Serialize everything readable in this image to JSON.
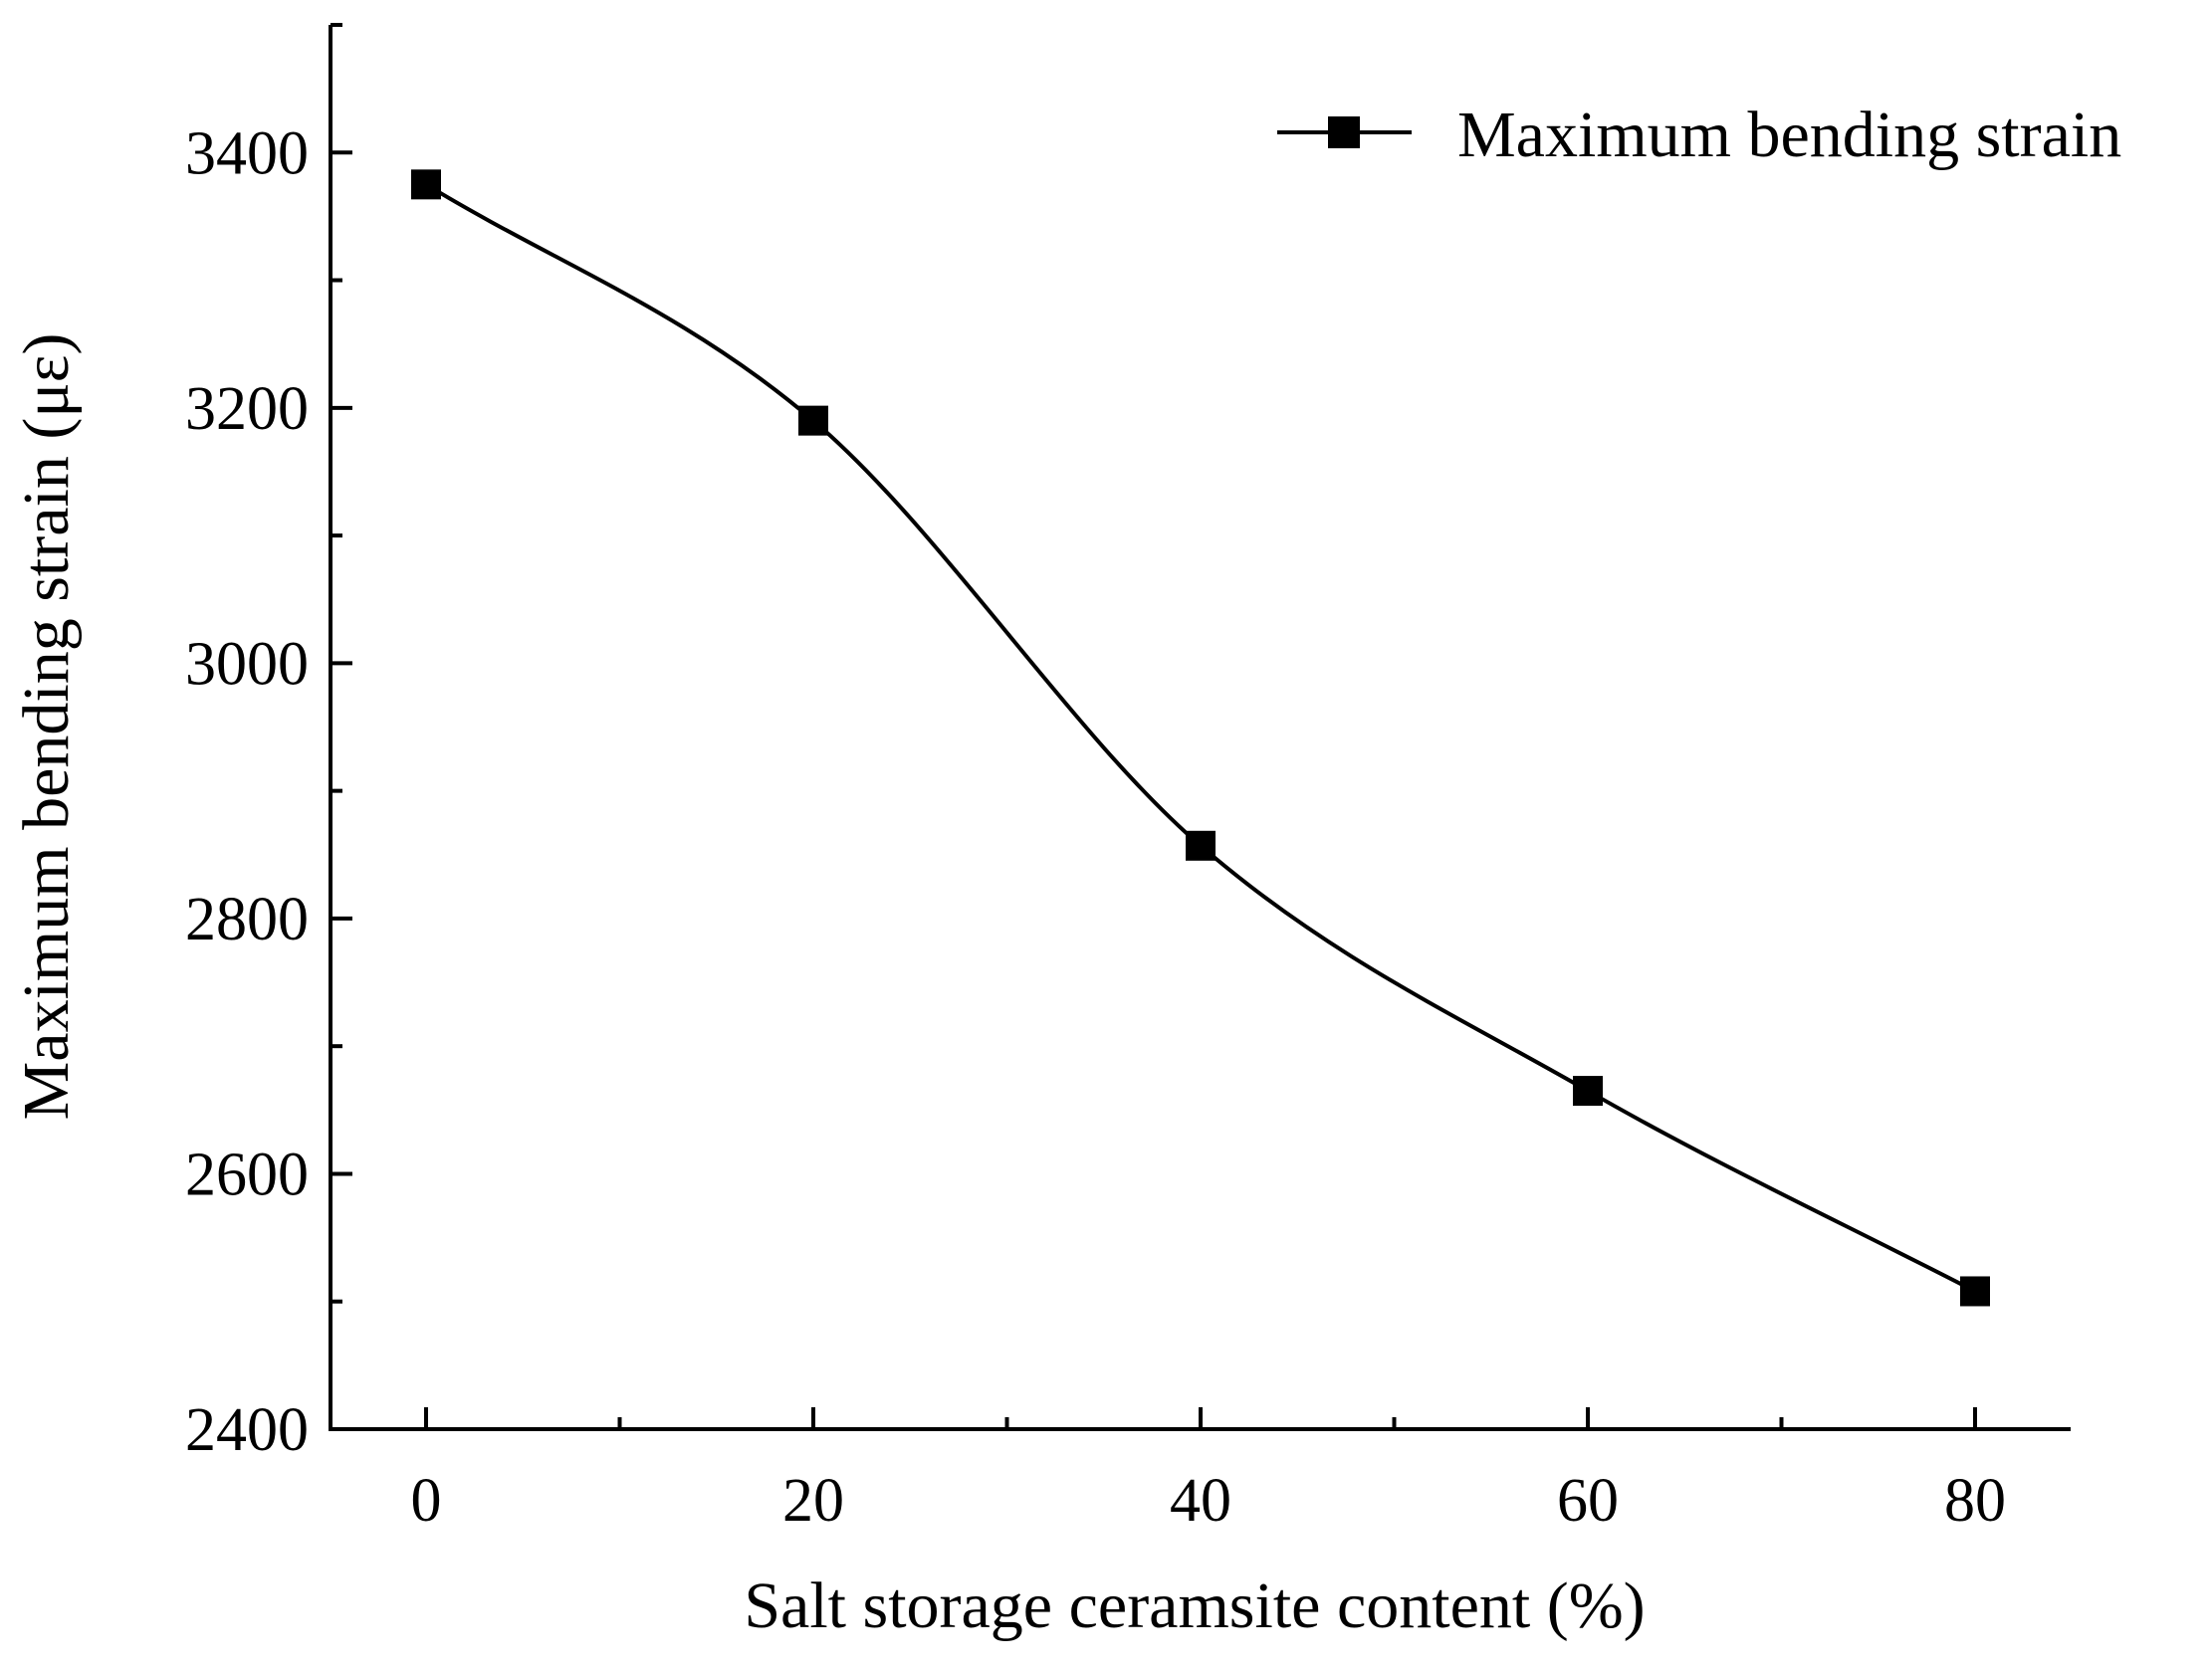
{
  "chart_data": {
    "type": "line",
    "x": [
      0,
      20,
      40,
      60,
      80
    ],
    "series": [
      {
        "name": "Maximum bending strain",
        "values": [
          3375,
          3190,
          2857,
          2665,
          2508
        ]
      }
    ],
    "xlabel": "Salt storage ceramsite content (%)",
    "ylabel": "Maximum bending strain (με)",
    "xlim": [
      -5,
      85
    ],
    "ylim": [
      2400,
      3500
    ],
    "xticks": [
      0,
      20,
      40,
      60,
      80
    ],
    "xtick_labels": [
      "0",
      "20",
      "40",
      "60",
      "80"
    ],
    "yticks": [
      2400,
      2600,
      2800,
      3000,
      3200,
      3400
    ],
    "ytick_labels": [
      "2400",
      "2600",
      "2800",
      "3000",
      "3200",
      "3400"
    ],
    "x_minor_ticks": [
      10,
      30,
      50,
      70
    ],
    "y_minor_ticks": [
      2500,
      2700,
      2900,
      3100,
      3300,
      3500
    ],
    "grid": false,
    "legend_position": "top-right",
    "line_style": "smooth",
    "marker": "square",
    "line_color": "#000000"
  }
}
